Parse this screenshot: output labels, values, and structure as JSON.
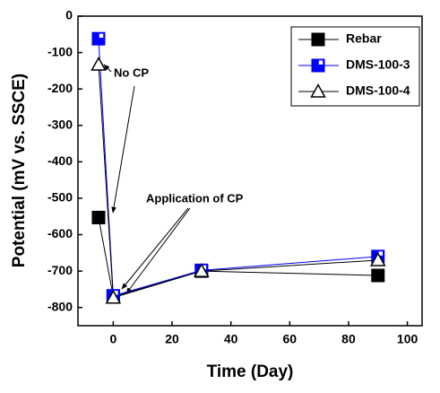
{
  "chart_data": {
    "type": "line",
    "x_label": "Time (Day)",
    "y_label": "Potential (mV vs. SSCE)",
    "x": [
      -5,
      0,
      30,
      90
    ],
    "series": [
      {
        "name": "Rebar",
        "color": "#000000",
        "marker": "square",
        "values": [
          -553,
          -770,
          -700,
          -712
        ]
      },
      {
        "name": "DMS-100-3",
        "color": "#0000ff",
        "marker": "half-square",
        "values": [
          -62,
          -768,
          -698,
          -660
        ]
      },
      {
        "name": "DMS-100-4",
        "color": "#000000",
        "marker": "triangle",
        "values": [
          -133,
          -773,
          -700,
          -670
        ]
      }
    ],
    "xlim": [
      -12,
      105
    ],
    "xticks": [
      0,
      20,
      40,
      60,
      80,
      100
    ],
    "ylim": [
      -850,
      0
    ],
    "yticks": [
      0,
      -100,
      -200,
      -300,
      -400,
      -500,
      -600,
      -700,
      -800
    ],
    "annotations": [
      "No CP",
      "Application of CP"
    ],
    "legend": "upper-right"
  }
}
